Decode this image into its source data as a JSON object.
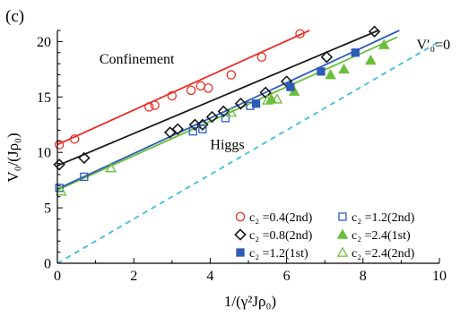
{
  "panel_label": "(c)",
  "chart_data": {
    "type": "scatter",
    "title": "",
    "xlabel": "1/(γ²Jρ₀)",
    "ylabel": "V₀/(Jρ₀)",
    "xlim": [
      0,
      10
    ],
    "ylim": [
      0,
      21
    ],
    "xticks": [
      0,
      2,
      4,
      6,
      8,
      10
    ],
    "yticks": [
      0,
      5,
      10,
      15,
      20
    ],
    "grid": false,
    "legend_position": "bottom-right",
    "annotations": [
      {
        "text": "Confinement",
        "x": 1.1,
        "y": 18.0
      },
      {
        "text": "Higgs",
        "x": 4.0,
        "y": 10.3
      },
      {
        "text": "V′₀=0",
        "x": 9.4,
        "y": 19.3
      }
    ],
    "series": [
      {
        "name": "c₂ =0.4(2nd)",
        "color": "#e8302a",
        "marker": "circle-open",
        "points": [
          [
            0.05,
            10.7
          ],
          [
            0.45,
            11.2
          ],
          [
            2.4,
            14.1
          ],
          [
            2.55,
            14.25
          ],
          [
            3.0,
            15.1
          ],
          [
            3.5,
            15.6
          ],
          [
            3.75,
            16.0
          ],
          [
            3.95,
            15.8
          ],
          [
            4.55,
            17.0
          ],
          [
            5.35,
            18.6
          ],
          [
            6.35,
            20.7
          ]
        ],
        "fit": [
          [
            0,
            10.7
          ],
          [
            6.6,
            21.0
          ]
        ]
      },
      {
        "name": "c₂ =0.8(2nd)",
        "color": "#1a1a1a",
        "marker": "diamond-open",
        "points": [
          [
            0.05,
            8.9
          ],
          [
            0.7,
            9.5
          ],
          [
            2.95,
            11.8
          ],
          [
            3.15,
            12.1
          ],
          [
            3.6,
            12.5
          ],
          [
            3.8,
            12.5
          ],
          [
            4.05,
            13.2
          ],
          [
            4.35,
            13.7
          ],
          [
            4.8,
            14.4
          ],
          [
            5.45,
            15.4
          ],
          [
            6.0,
            16.4
          ],
          [
            7.05,
            18.6
          ],
          [
            8.3,
            20.9
          ]
        ],
        "fit": [
          [
            0,
            8.8
          ],
          [
            8.4,
            21.0
          ]
        ]
      },
      {
        "name": "c₂ =1.2(2nd)",
        "color": "#2d5bb8",
        "marker": "square-open",
        "points": [
          [
            0.05,
            6.8
          ],
          [
            0.7,
            7.8
          ],
          [
            3.55,
            11.9
          ],
          [
            3.8,
            12.1
          ],
          [
            4.4,
            13.1
          ],
          [
            5.05,
            14.2
          ]
        ],
        "fit": null
      },
      {
        "name": "c₂ =2.4(1st)",
        "color": "#6abf3a",
        "marker": "triangle-filled",
        "points": [
          [
            5.6,
            14.8
          ],
          [
            6.2,
            15.5
          ],
          [
            7.15,
            17.0
          ],
          [
            7.5,
            17.5
          ],
          [
            8.2,
            18.3
          ],
          [
            8.55,
            19.7
          ]
        ],
        "fit": [
          [
            0,
            6.6
          ],
          [
            8.9,
            20.4
          ]
        ]
      },
      {
        "name": "c₂ =1.2(1st)",
        "color": "#2d5bb8",
        "marker": "square-filled",
        "points": [
          [
            5.2,
            14.4
          ],
          [
            6.1,
            15.9
          ],
          [
            6.9,
            17.3
          ],
          [
            7.8,
            19.0
          ]
        ],
        "fit": [
          [
            0,
            6.7
          ],
          [
            8.95,
            21.0
          ]
        ]
      },
      {
        "name": "c₂ =2.4(2nd)",
        "color": "#6abf3a",
        "marker": "triangle-open",
        "points": [
          [
            0.1,
            6.5
          ],
          [
            1.4,
            8.6
          ],
          [
            4.55,
            13.6
          ],
          [
            5.5,
            14.7
          ],
          [
            5.75,
            14.8
          ]
        ],
        "fit": null
      },
      {
        "name": "V′₀=0",
        "color": "#3fbde0",
        "marker": "none",
        "line_style": "dashed",
        "points": [],
        "fit": [
          [
            0,
            0
          ],
          [
            10,
            20.0
          ]
        ]
      }
    ],
    "legend": [
      {
        "label": "c₂ =0.4(2nd)",
        "series": 0
      },
      {
        "label": "c₂ =1.2(2nd)",
        "series": 2
      },
      {
        "label": "c₂ =0.8(2nd)",
        "series": 1
      },
      {
        "label": "c₂ =2.4(1st)",
        "series": 3
      },
      {
        "label": "c₂ =1.2(1st)",
        "series": 4
      },
      {
        "label": "c₂ =2.4(2nd)",
        "series": 5
      }
    ]
  }
}
